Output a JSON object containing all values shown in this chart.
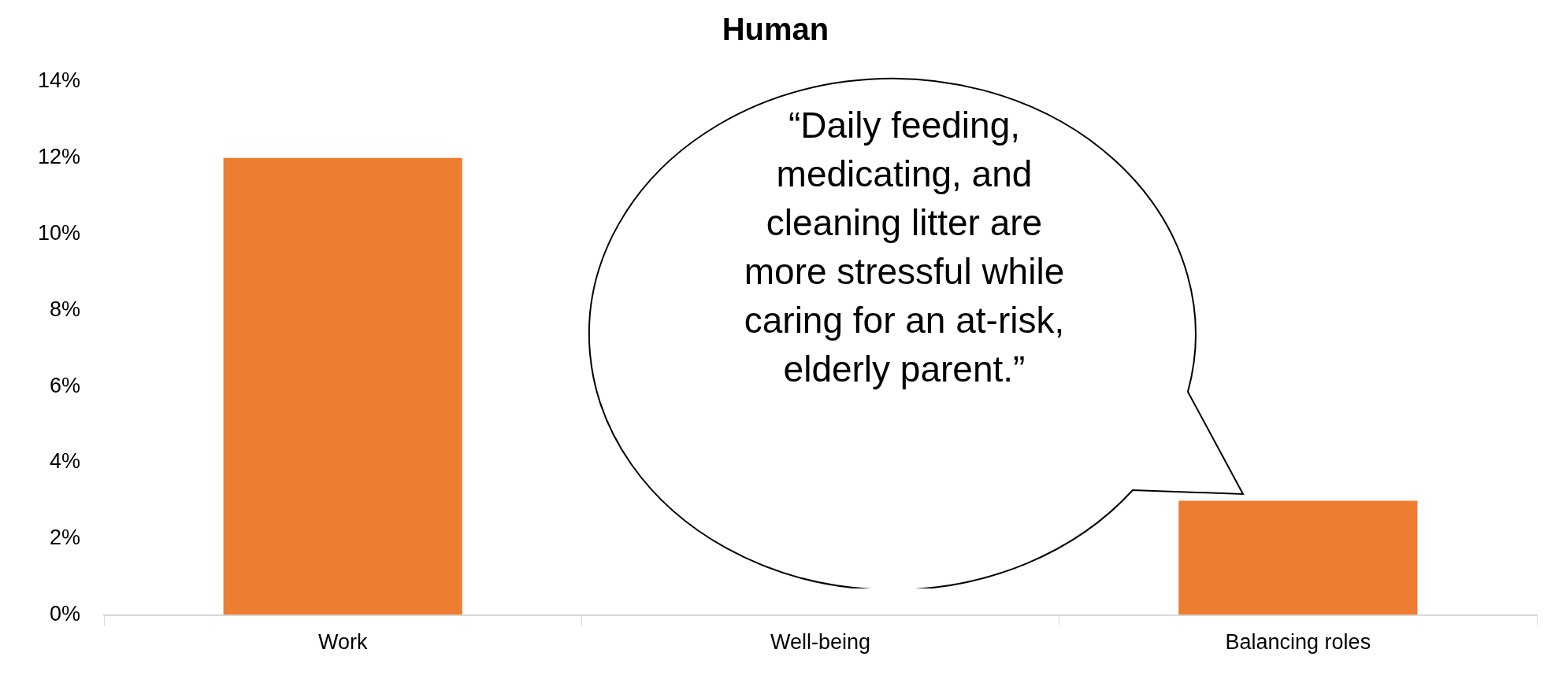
{
  "chart_data": {
    "type": "bar",
    "title": "Human",
    "categories": [
      "Work",
      "Well-being",
      "Balancing roles"
    ],
    "values": [
      12,
      null,
      3
    ],
    "color": "#ed7d31",
    "ylim": [
      0,
      14
    ],
    "yticks": [
      {
        "value": 0,
        "label": "0%"
      },
      {
        "value": 2,
        "label": "2%"
      },
      {
        "value": 4,
        "label": "4%"
      },
      {
        "value": 6,
        "label": "6%"
      },
      {
        "value": 8,
        "label": "8%"
      },
      {
        "value": 10,
        "label": "10%"
      },
      {
        "value": 12,
        "label": "12%"
      },
      {
        "value": 14,
        "label": "14%"
      }
    ],
    "grid": false,
    "annotations": [
      "“Daily feeding, medicating, and cleaning litter are more stressful while caring for an at-risk, elderly parent.”"
    ]
  }
}
